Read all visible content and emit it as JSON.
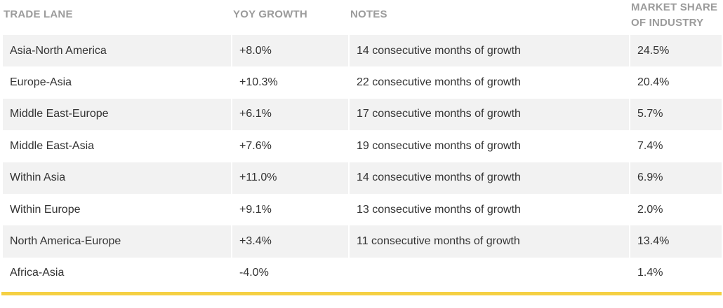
{
  "chart_data": {
    "type": "table",
    "columns": [
      "TRADE LANE",
      "YOY GROWTH",
      "NOTES",
      "MARKET SHARE OF INDUSTRY"
    ],
    "rows": [
      {
        "lane": "Asia-North America",
        "yoy": "+8.0%",
        "notes": "14 consecutive months of growth",
        "share": "24.5%"
      },
      {
        "lane": "Europe-Asia",
        "yoy": "+10.3%",
        "notes": "22 consecutive months of growth",
        "share": "20.4%"
      },
      {
        "lane": "Middle East-Europe",
        "yoy": "+6.1%",
        "notes": "17 consecutive months of growth",
        "share": "5.7%"
      },
      {
        "lane": "Middle East-Asia",
        "yoy": "+7.6%",
        "notes": "19 consecutive months of growth",
        "share": "7.4%"
      },
      {
        "lane": "Within Asia",
        "yoy": "+11.0%",
        "notes": "14 consecutive months of growth",
        "share": "6.9%"
      },
      {
        "lane": "Within Europe",
        "yoy": "+9.1%",
        "notes": "13 consecutive months of growth",
        "share": "2.0%"
      },
      {
        "lane": "North America-Europe",
        "yoy": "+3.4%",
        "notes": "11 consecutive months of growth",
        "share": "13.4%"
      },
      {
        "lane": "Africa-Asia",
        "yoy": "-4.0%",
        "notes": "",
        "share": "1.4%"
      }
    ]
  },
  "colors": {
    "header_text": "#9b9b9b",
    "row_stripe": "#f2f2f2",
    "body_text": "#333333",
    "accent_rule": "#f5d043"
  }
}
